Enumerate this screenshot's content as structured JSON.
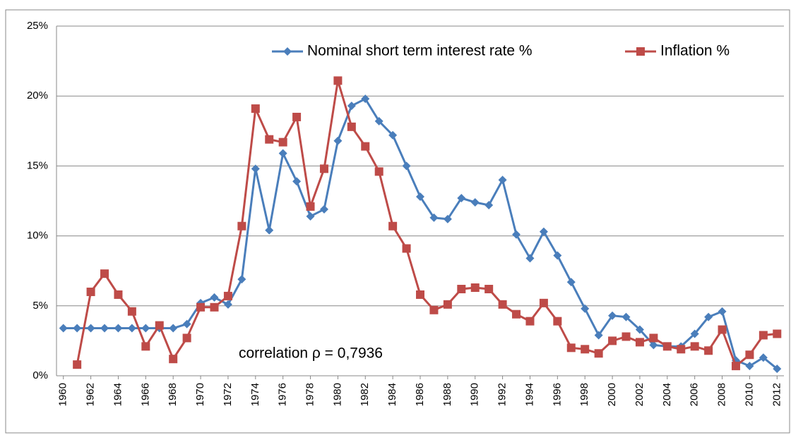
{
  "chart_data": {
    "type": "line",
    "annotation": "correlation  ρ = 0,7936",
    "x": [
      1960,
      1961,
      1962,
      1963,
      1964,
      1965,
      1966,
      1967,
      1968,
      1969,
      1970,
      1971,
      1972,
      1973,
      1974,
      1975,
      1976,
      1977,
      1978,
      1979,
      1980,
      1981,
      1982,
      1983,
      1984,
      1985,
      1986,
      1987,
      1988,
      1989,
      1990,
      1991,
      1992,
      1993,
      1994,
      1995,
      1996,
      1997,
      1998,
      1999,
      2000,
      2001,
      2002,
      2003,
      2004,
      2005,
      2006,
      2007,
      2008,
      2009,
      2010,
      2011,
      2012
    ],
    "series": [
      {
        "name": "Nominal short term interest rate %",
        "color": "#4a7ebb",
        "marker": "diamond",
        "values": [
          3.4,
          3.4,
          3.4,
          3.4,
          3.4,
          3.4,
          3.4,
          3.4,
          3.4,
          3.7,
          5.2,
          5.6,
          5.1,
          6.9,
          14.8,
          10.4,
          15.9,
          13.9,
          11.4,
          11.9,
          16.8,
          19.3,
          19.8,
          18.2,
          17.2,
          15.0,
          12.8,
          11.3,
          11.2,
          12.7,
          12.4,
          12.2,
          14.0,
          10.1,
          8.4,
          10.3,
          8.6,
          6.7,
          4.8,
          2.9,
          4.3,
          4.2,
          3.3,
          2.2,
          2.1,
          2.1,
          3.0,
          4.2,
          4.6,
          1.1,
          0.7,
          1.3,
          0.5
        ]
      },
      {
        "name": "Inflation %",
        "color": "#be4b48",
        "marker": "square",
        "values": [
          null,
          0.8,
          6.0,
          7.3,
          5.8,
          4.6,
          2.1,
          3.6,
          1.2,
          2.7,
          4.9,
          4.9,
          5.7,
          10.7,
          19.1,
          16.9,
          16.7,
          18.5,
          12.1,
          14.8,
          21.1,
          17.8,
          16.4,
          14.6,
          10.7,
          9.1,
          5.8,
          4.7,
          5.1,
          6.2,
          6.3,
          6.2,
          5.1,
          4.4,
          3.9,
          5.2,
          3.9,
          2.0,
          1.9,
          1.6,
          2.5,
          2.8,
          2.4,
          2.7,
          2.1,
          1.9,
          2.1,
          1.8,
          3.3,
          0.7,
          1.5,
          2.9,
          3.0
        ]
      }
    ],
    "xlim": [
      1959.5,
      2012.5
    ],
    "xticks": [
      1960,
      1962,
      1964,
      1966,
      1968,
      1970,
      1972,
      1974,
      1976,
      1978,
      1980,
      1982,
      1984,
      1986,
      1988,
      1990,
      1992,
      1994,
      1996,
      1998,
      2000,
      2002,
      2004,
      2006,
      2008,
      2010,
      2012
    ],
    "ylim": [
      0,
      25
    ],
    "yticks": [
      {
        "value": 0,
        "label": "0%"
      },
      {
        "value": 5,
        "label": "5%"
      },
      {
        "value": 10,
        "label": "10%"
      },
      {
        "value": 15,
        "label": "15%"
      },
      {
        "value": 20,
        "label": "20%"
      },
      {
        "value": 25,
        "label": "25%"
      }
    ],
    "grid": true,
    "legend": "top"
  }
}
